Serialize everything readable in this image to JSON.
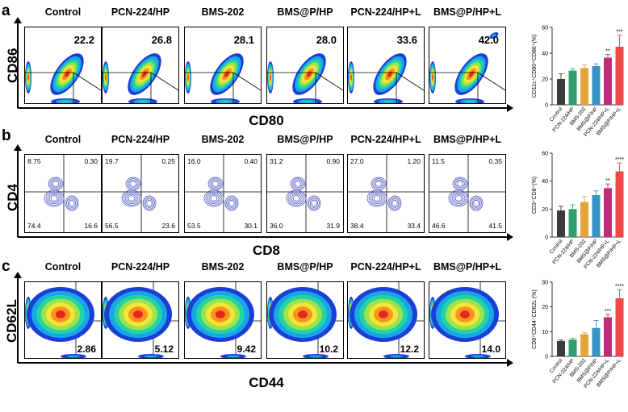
{
  "groups": [
    "Control",
    "PCN-224/HP",
    "BMS-202",
    "BMS@P/HP",
    "PCN-224/HP+L",
    "BMS@P/HP+L"
  ],
  "rows": [
    {
      "letter": "a",
      "y_marker": "CD86",
      "x_marker": "CD80",
      "values": [
        "22.2",
        "26.8",
        "28.1",
        "28.0",
        "33.6",
        "42.0"
      ]
    },
    {
      "letter": "b",
      "y_marker": "CD4",
      "x_marker": "CD8",
      "quadrants": [
        {
          "ul": "8.75",
          "ur": "0.30",
          "ll": "74.4",
          "lr": "16.6"
        },
        {
          "ul": "19.7",
          "ur": "0.25",
          "ll": "56.5",
          "lr": "23.6"
        },
        {
          "ul": "16.0",
          "ur": "0.40",
          "ll": "53.5",
          "lr": "30.1"
        },
        {
          "ul": "31.2",
          "ur": "0.90",
          "ll": "36.0",
          "lr": "31.9"
        },
        {
          "ul": "27.0",
          "ur": "1.20",
          "ll": "38.4",
          "lr": "33.4"
        },
        {
          "ul": "11.5",
          "ur": "0.35",
          "ll": "46.6",
          "lr": "41.5"
        }
      ]
    },
    {
      "letter": "c",
      "y_marker": "CD62L",
      "x_marker": "CD44",
      "values": [
        "2.86",
        "5.12",
        "9.42",
        "10.2",
        "12.2",
        "14.0"
      ]
    }
  ],
  "bar_colors": [
    "#3b3b3b",
    "#2e9e6e",
    "#e3a43a",
    "#3a93c8",
    "#c42a7a",
    "#ef4848"
  ],
  "chart_data": [
    {
      "type": "bar",
      "ylabel": "CD11c⁺CD80⁺CD86⁺(%)",
      "ylim": [
        0,
        60
      ],
      "yticks": [
        "0",
        "20",
        "40",
        "60"
      ],
      "categories": [
        "Control",
        "PCN-224/HP",
        "BMS-202",
        "BMS@P/HP",
        "PCN-224/HP+L",
        "BMS@P/HP+L"
      ],
      "values": [
        20,
        26.5,
        28.5,
        30,
        36.5,
        45
      ],
      "errors": [
        4,
        1.5,
        2.5,
        1.8,
        2.5,
        9
      ],
      "significance": [
        "",
        "",
        "",
        "",
        "**",
        "***"
      ]
    },
    {
      "type": "bar",
      "ylabel": "CD3⁺CD8⁺(%)",
      "ylim": [
        0,
        60
      ],
      "yticks": [
        "0",
        "20",
        "40",
        "60"
      ],
      "categories": [
        "Control",
        "PCN-224/HP",
        "BMS-202",
        "BMS@P/HP",
        "PCN-224/HP+L",
        "BMS@P/HP+L"
      ],
      "values": [
        19,
        20,
        25,
        30,
        35,
        47
      ],
      "errors": [
        3,
        3,
        4,
        3,
        3,
        6
      ],
      "significance": [
        "",
        "",
        "",
        "",
        "**",
        "****"
      ]
    },
    {
      "type": "bar",
      "ylabel": "CD8⁺CD44⁺CD62L (%)",
      "ylim": [
        0,
        30
      ],
      "yticks": [
        "0",
        "10",
        "20",
        "30"
      ],
      "categories": [
        "Control",
        "PCN-224/HP",
        "BMS-202",
        "BMS@P/HP",
        "PCN-224/HP+L",
        "BMS@P/HP+L"
      ],
      "values": [
        6.2,
        6.8,
        9,
        11.5,
        15.8,
        23.5
      ],
      "errors": [
        0.4,
        0.5,
        0.6,
        3,
        1.2,
        3.5
      ],
      "significance": [
        "",
        "",
        "",
        "",
        "***",
        "****"
      ]
    }
  ]
}
